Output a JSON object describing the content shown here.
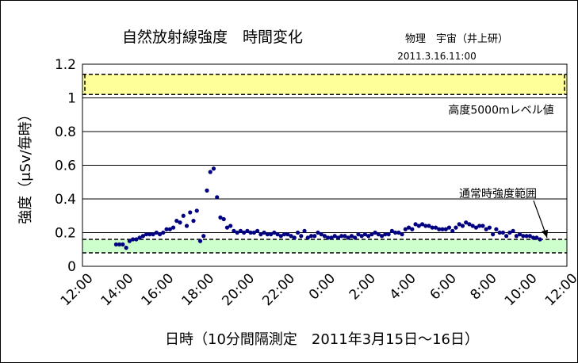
{
  "chart_data": {
    "type": "scatter",
    "title": "自然放射線強度　時間変化",
    "author": "物理　宇宙（井上研）",
    "timestamp": "2011.3.16.11:00",
    "xlabel": "日時（10分間隔測定　2011年3月15日～16日）",
    "ylabel": "強度（μSv/毎時）",
    "ylim": [
      0,
      1.2
    ],
    "yticks": [
      "0",
      "0.2",
      "0.4",
      "0.6",
      "0.8",
      "1",
      "1.2"
    ],
    "xlim": [
      "12:00",
      "12:00"
    ],
    "xticks": [
      "12:00",
      "14:00",
      "16:00",
      "18:00",
      "20:00",
      "22:00",
      "0:00",
      "2:00",
      "4:00",
      "6:00",
      "8:00",
      "10:00",
      "12:00"
    ],
    "grid": true,
    "bands": [
      {
        "label": "高度5000mレベル値",
        "range": [
          1.02,
          1.14
        ],
        "color": "#ffff99"
      },
      {
        "label": "通常時強度範囲",
        "range": [
          0.08,
          0.16
        ],
        "color": "#ccffcc"
      }
    ],
    "series": [
      {
        "color": "#000080",
        "points": [
          [
            "13:40",
            0.13
          ],
          [
            "13:50",
            0.13
          ],
          [
            "14:00",
            0.13
          ],
          [
            "14:10",
            0.11
          ],
          [
            "14:20",
            0.15
          ],
          [
            "14:30",
            0.16
          ],
          [
            "14:40",
            0.16
          ],
          [
            "14:50",
            0.17
          ],
          [
            "15:00",
            0.18
          ],
          [
            "15:10",
            0.19
          ],
          [
            "15:20",
            0.19
          ],
          [
            "15:30",
            0.19
          ],
          [
            "15:40",
            0.2
          ],
          [
            "15:50",
            0.19
          ],
          [
            "16:00",
            0.2
          ],
          [
            "16:10",
            0.22
          ],
          [
            "16:20",
            0.22
          ],
          [
            "16:30",
            0.23
          ],
          [
            "16:40",
            0.27
          ],
          [
            "16:50",
            0.26
          ],
          [
            "17:00",
            0.3
          ],
          [
            "17:10",
            0.24
          ],
          [
            "17:20",
            0.32
          ],
          [
            "17:30",
            0.27
          ],
          [
            "17:40",
            0.33
          ],
          [
            "17:50",
            0.15
          ],
          [
            "18:00",
            0.18
          ],
          [
            "18:10",
            0.45
          ],
          [
            "18:20",
            0.56
          ],
          [
            "18:30",
            0.58
          ],
          [
            "18:40",
            0.41
          ],
          [
            "18:50",
            0.29
          ],
          [
            "19:00",
            0.28
          ],
          [
            "19:10",
            0.23
          ],
          [
            "19:20",
            0.24
          ],
          [
            "19:30",
            0.21
          ],
          [
            "19:40",
            0.2
          ],
          [
            "19:50",
            0.21
          ],
          [
            "20:00",
            0.2
          ],
          [
            "20:10",
            0.21
          ],
          [
            "20:20",
            0.2
          ],
          [
            "20:30",
            0.2
          ],
          [
            "20:40",
            0.21
          ],
          [
            "20:50",
            0.19
          ],
          [
            "21:00",
            0.2
          ],
          [
            "21:10",
            0.19
          ],
          [
            "21:20",
            0.19
          ],
          [
            "21:30",
            0.2
          ],
          [
            "21:40",
            0.19
          ],
          [
            "21:50",
            0.18
          ],
          [
            "22:00",
            0.19
          ],
          [
            "22:10",
            0.19
          ],
          [
            "22:20",
            0.18
          ],
          [
            "22:30",
            0.17
          ],
          [
            "22:40",
            0.2
          ],
          [
            "22:50",
            0.18
          ],
          [
            "23:00",
            0.21
          ],
          [
            "23:10",
            0.17
          ],
          [
            "23:20",
            0.18
          ],
          [
            "23:30",
            0.18
          ],
          [
            "23:40",
            0.2
          ],
          [
            "23:50",
            0.19
          ],
          [
            "0:00",
            0.18
          ],
          [
            "0:10",
            0.17
          ],
          [
            "0:20",
            0.17
          ],
          [
            "0:30",
            0.18
          ],
          [
            "0:40",
            0.17
          ],
          [
            "0:50",
            0.18
          ],
          [
            "1:00",
            0.18
          ],
          [
            "1:10",
            0.17
          ],
          [
            "1:20",
            0.18
          ],
          [
            "1:30",
            0.17
          ],
          [
            "1:40",
            0.19
          ],
          [
            "1:50",
            0.18
          ],
          [
            "2:00",
            0.19
          ],
          [
            "2:10",
            0.18
          ],
          [
            "2:20",
            0.19
          ],
          [
            "2:30",
            0.2
          ],
          [
            "2:40",
            0.19
          ],
          [
            "2:50",
            0.18
          ],
          [
            "3:00",
            0.19
          ],
          [
            "3:10",
            0.19
          ],
          [
            "3:20",
            0.21
          ],
          [
            "3:30",
            0.2
          ],
          [
            "3:40",
            0.2
          ],
          [
            "3:50",
            0.19
          ],
          [
            "4:00",
            0.22
          ],
          [
            "4:10",
            0.23
          ],
          [
            "4:20",
            0.22
          ],
          [
            "4:30",
            0.25
          ],
          [
            "4:40",
            0.24
          ],
          [
            "4:50",
            0.25
          ],
          [
            "5:00",
            0.24
          ],
          [
            "5:10",
            0.24
          ],
          [
            "5:20",
            0.23
          ],
          [
            "5:30",
            0.23
          ],
          [
            "5:40",
            0.22
          ],
          [
            "5:50",
            0.22
          ],
          [
            "6:00",
            0.22
          ],
          [
            "6:10",
            0.23
          ],
          [
            "6:20",
            0.21
          ],
          [
            "6:30",
            0.23
          ],
          [
            "6:40",
            0.25
          ],
          [
            "6:50",
            0.24
          ],
          [
            "7:00",
            0.26
          ],
          [
            "7:10",
            0.25
          ],
          [
            "7:20",
            0.24
          ],
          [
            "7:30",
            0.23
          ],
          [
            "7:40",
            0.24
          ],
          [
            "7:50",
            0.24
          ],
          [
            "8:00",
            0.22
          ],
          [
            "8:10",
            0.23
          ],
          [
            "8:20",
            0.19
          ],
          [
            "8:30",
            0.22
          ],
          [
            "8:40",
            0.2
          ],
          [
            "8:50",
            0.2
          ],
          [
            "9:00",
            0.18
          ],
          [
            "9:10",
            0.2
          ],
          [
            "9:20",
            0.21
          ],
          [
            "9:30",
            0.18
          ],
          [
            "9:40",
            0.19
          ],
          [
            "9:50",
            0.18
          ],
          [
            "10:00",
            0.18
          ],
          [
            "10:10",
            0.18
          ],
          [
            "10:20",
            0.17
          ],
          [
            "10:30",
            0.17
          ],
          [
            "10:40",
            0.16
          ]
        ]
      }
    ]
  }
}
